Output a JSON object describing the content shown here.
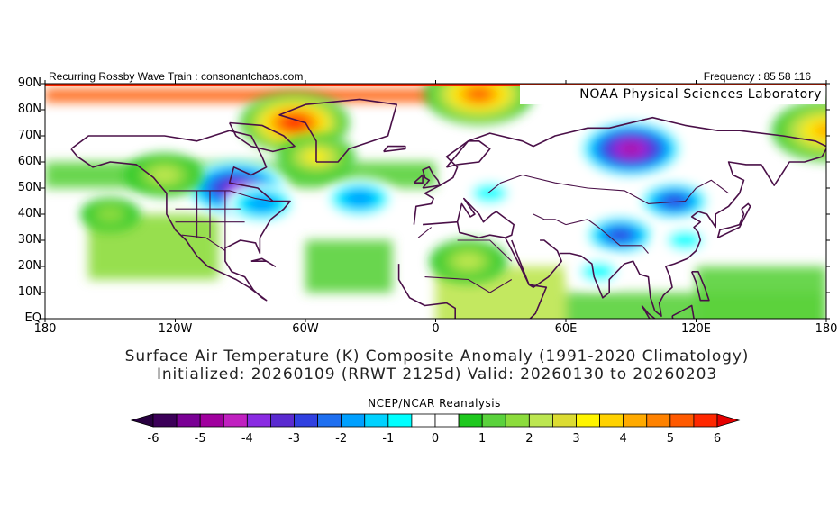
{
  "header": {
    "left": "Recurring Rossby Wave Train : consonantchaos.com",
    "right": "Frequency : 85 58 116"
  },
  "lab_label": "NOAA Physical Sciences Laboratory",
  "map": {
    "lat_labels": [
      "90N",
      "80N",
      "70N",
      "60N",
      "50N",
      "40N",
      "30N",
      "20N",
      "10N",
      "EQ"
    ],
    "lon_labels": [
      "180",
      "120W",
      "60W",
      "0",
      "60E",
      "120E",
      "180"
    ],
    "anomalies": [
      {
        "name": "greenland-arctic-warm",
        "lon": -65,
        "lat": 75,
        "value": 6
      },
      {
        "name": "north-pole-warm",
        "lon": 20,
        "lat": 86,
        "value": 5
      },
      {
        "name": "chukotka-warm",
        "lon": 180,
        "lat": 72,
        "value": 4
      },
      {
        "name": "eastern-canada-cold",
        "lon": -92,
        "lat": 50,
        "value": -4
      },
      {
        "name": "great-lakes-cold",
        "lon": -80,
        "lat": 44,
        "value": -2
      },
      {
        "name": "atlantic-cold",
        "lon": -35,
        "lat": 46,
        "value": -2
      },
      {
        "name": "europe-cold",
        "lon": 25,
        "lat": 48,
        "value": -1
      },
      {
        "name": "siberia-cold",
        "lon": 90,
        "lat": 65,
        "value": -5
      },
      {
        "name": "mongolia-cold",
        "lon": 110,
        "lat": 45,
        "value": -3
      },
      {
        "name": "tibet-cold",
        "lon": 85,
        "lat": 32,
        "value": -3
      },
      {
        "name": "india-cool",
        "lon": 75,
        "lat": 18,
        "value": -1
      },
      {
        "name": "china-cool",
        "lon": 115,
        "lat": 30,
        "value": -1
      },
      {
        "name": "sahara-warm",
        "lon": 15,
        "lat": 22,
        "value": 2
      },
      {
        "name": "pacific-warm",
        "lon": -150,
        "lat": 40,
        "value": 1.5
      },
      {
        "name": "hudson-warm",
        "lon": -55,
        "lat": 62,
        "value": 3
      },
      {
        "name": "pacific-nw-warm",
        "lon": -125,
        "lat": 55,
        "value": 2
      }
    ]
  },
  "caption": {
    "line1": "Surface Air Temperature (K) Composite Anomaly (1991-2020 Climatology)",
    "line2": "Initialized: 20260109 (RRWT 2125d) Valid: 20260130 to 20260203"
  },
  "source": "NCEP/NCAR Reanalysis",
  "colorbar": {
    "labels": [
      "-6",
      "-5",
      "-4",
      "-3",
      "-2",
      "-1",
      "0",
      "1",
      "2",
      "3",
      "4",
      "5",
      "6"
    ],
    "colors": [
      "#3c0059",
      "#7a0095",
      "#a0009e",
      "#c020c0",
      "#8a2be2",
      "#5a2ad0",
      "#3040e0",
      "#1e6ff0",
      "#00a0ff",
      "#00d2ff",
      "#00ffff",
      "#ffffff",
      "#ffffff",
      "#1ec81e",
      "#5ad23c",
      "#8cdc3c",
      "#bce650",
      "#dcdc32",
      "#fff500",
      "#ffd200",
      "#ffaa00",
      "#ff8200",
      "#ff5a00",
      "#ff2800"
    ],
    "below_color": "#280040",
    "above_color": "#e60000"
  }
}
